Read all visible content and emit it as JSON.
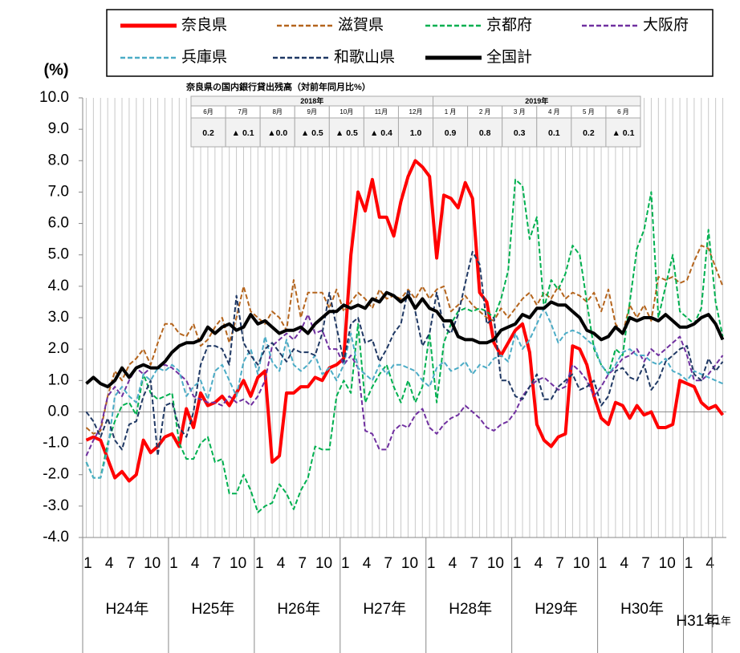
{
  "chart_data": {
    "type": "line",
    "y_axis_label": "(%)",
    "grid": "vertical",
    "categories": [
      "1",
      null,
      null,
      "4",
      null,
      null,
      "7",
      null,
      null,
      "10",
      null,
      null,
      "1",
      null,
      null,
      "4",
      null,
      null,
      "7",
      null,
      null,
      "10",
      null,
      null,
      "1",
      null,
      null,
      "4",
      null,
      null,
      "7",
      null,
      null,
      "10",
      null,
      null,
      "1",
      null,
      null,
      "4",
      null,
      null,
      "7",
      null,
      null,
      "10",
      null,
      null,
      "1",
      null,
      null,
      "4",
      null,
      null,
      "7",
      null,
      null,
      "10",
      null,
      null,
      "1",
      null,
      null,
      "4",
      null,
      null,
      "7",
      null,
      null,
      "10",
      null,
      null,
      "1",
      null,
      null,
      "4",
      null,
      null,
      "7",
      null,
      null,
      "10",
      null,
      null,
      "1",
      null,
      null,
      "4",
      null,
      null
    ],
    "year_labels": [
      "H24年",
      "H25年",
      "H26年",
      "H27年",
      "H28年",
      "H29年",
      "H30年",
      "H31年",
      "R1年"
    ],
    "ylim": [
      -4,
      10
    ],
    "yticks": [
      {
        "value": 10,
        "label": "10.0"
      },
      {
        "value": 9,
        "label": "9.0"
      },
      {
        "value": 8,
        "label": "8.0"
      },
      {
        "value": 7,
        "label": "7.0"
      },
      {
        "value": 6,
        "label": "6.0"
      },
      {
        "value": 5,
        "label": "5.0"
      },
      {
        "value": 4,
        "label": "4.0"
      },
      {
        "value": 3,
        "label": "3.0"
      },
      {
        "value": 2,
        "label": "2.0"
      },
      {
        "value": 1,
        "label": "1.0"
      },
      {
        "value": 0,
        "label": "0.0"
      },
      {
        "value": -1,
        "label": "-1.0"
      },
      {
        "value": -2,
        "label": "-2.0"
      },
      {
        "value": -3,
        "label": "-3.0"
      },
      {
        "value": -4,
        "label": "-4.0"
      }
    ],
    "series": [
      {
        "name": "奈良県",
        "color": "#ff0000",
        "style": "solid",
        "values": [
          -0.9,
          -0.8,
          -0.9,
          -1.5,
          -2.1,
          -1.9,
          -2.2,
          -2.0,
          -0.9,
          -1.3,
          -1.1,
          -0.8,
          -0.7,
          -1.1,
          0.1,
          -0.5,
          0.6,
          0.2,
          0.3,
          0.5,
          0.2,
          0.6,
          1.0,
          0.5,
          1.1,
          1.3,
          -1.6,
          -1.4,
          0.6,
          0.6,
          0.8,
          0.8,
          1.1,
          1.0,
          1.4,
          1.5,
          1.7,
          5.0,
          7.0,
          6.4,
          7.4,
          6.2,
          6.2,
          5.6,
          6.7,
          7.5,
          8.0,
          7.8,
          7.5,
          4.9,
          6.9,
          6.8,
          6.5,
          7.3,
          6.8,
          3.8,
          3.5,
          2.2,
          1.8,
          2.2,
          2.6,
          2.8,
          1.9,
          -0.4,
          -0.9,
          -1.1,
          -0.8,
          -0.7,
          2.1,
          2.0,
          1.5,
          0.5,
          -0.2,
          -0.4,
          0.3,
          0.2,
          -0.2,
          0.2,
          -0.1,
          0.0,
          -0.5,
          -0.5,
          -0.4,
          1.0,
          0.9,
          0.8,
          0.3,
          0.1,
          0.2,
          -0.1
        ]
      },
      {
        "name": "滋賀県",
        "color": "#b5651d",
        "style": "dashed",
        "values": [
          -0.5,
          -0.7,
          -0.6,
          0.5,
          1.3,
          1.0,
          1.5,
          1.7,
          2.0,
          1.5,
          2.2,
          2.8,
          2.8,
          2.5,
          2.4,
          2.8,
          2.1,
          2.3,
          2.7,
          3.0,
          2.2,
          3.0,
          4.0,
          3.2,
          3.0,
          2.8,
          3.2,
          3.0,
          2.6,
          4.2,
          3.0,
          3.8,
          3.8,
          3.8,
          3.3,
          3.9,
          3.2,
          3.5,
          3.8,
          3.6,
          3.3,
          3.9,
          3.6,
          3.7,
          3.6,
          3.9,
          3.6,
          4.0,
          3.6,
          3.9,
          4.0,
          3.2,
          3.4,
          3.7,
          3.4,
          3.2,
          3.0,
          2.9,
          3.3,
          3.0,
          3.3,
          3.6,
          3.8,
          3.4,
          3.8,
          3.6,
          4.0,
          3.6,
          3.8,
          3.7,
          3.5,
          3.8,
          3.2,
          3.9,
          2.8,
          2.5,
          3.4,
          3.0,
          3.4,
          2.9,
          4.3,
          4.2,
          4.3,
          4.1,
          4.2,
          4.8,
          5.3,
          5.2,
          4.6,
          4.0
        ]
      },
      {
        "name": "京都府",
        "color": "#00b050",
        "style": "dashed",
        "values": [
          -1.6,
          -2.1,
          -2.1,
          -1.0,
          -0.3,
          0.2,
          0.3,
          -0.1,
          1.2,
          0.6,
          0.4,
          0.5,
          0.6,
          -1.0,
          -1.5,
          -1.5,
          -1.0,
          -0.8,
          -1.6,
          -1.5,
          -2.6,
          -2.6,
          -2.0,
          -2.5,
          -3.2,
          -3.0,
          -2.9,
          -2.3,
          -2.6,
          -3.1,
          -2.5,
          -2.1,
          -1.1,
          -1.2,
          -1.2,
          0.5,
          1.0,
          0.6,
          2.8,
          0.3,
          0.8,
          1.2,
          1.5,
          0.8,
          0.3,
          1.0,
          0.3,
          0.8,
          2.5,
          0.3,
          2.2,
          2.8,
          3.2,
          3.3,
          3.2,
          3.3,
          3.2,
          3.0,
          3.6,
          4.5,
          7.4,
          7.2,
          5.5,
          6.2,
          3.3,
          4.2,
          3.9,
          4.4,
          5.3,
          5.0,
          3.5,
          2.0,
          1.5,
          1.2,
          2.0,
          1.8,
          3.5,
          5.2,
          5.8,
          7.0,
          3.0,
          4.0,
          5.0,
          3.2,
          3.0,
          2.8,
          3.3,
          5.8,
          3.5,
          2.4
        ]
      },
      {
        "name": "大阪府",
        "color": "#7030a0",
        "style": "dashed",
        "values": [
          -1.4,
          -0.9,
          -0.5,
          0.5,
          0.8,
          0.5,
          1.0,
          1.4,
          1.2,
          1.4,
          1.4,
          1.5,
          1.4,
          1.2,
          1.0,
          0.5,
          0.4,
          0.3,
          0.3,
          0.2,
          0.5,
          0.3,
          0.4,
          0.2,
          0.5,
          1.0,
          2.1,
          2.3,
          2.5,
          2.3,
          2.6,
          3.1,
          2.5,
          2.6,
          2.0,
          2.0,
          1.5,
          1.8,
          1.4,
          -0.6,
          -0.7,
          -1.2,
          -1.2,
          -0.6,
          -0.4,
          -0.5,
          -0.1,
          0.1,
          -0.5,
          -0.7,
          -0.4,
          -0.2,
          -0.1,
          0.2,
          0.0,
          -0.2,
          -0.5,
          -0.6,
          -0.4,
          -0.3,
          0.0,
          0.5,
          0.8,
          1.0,
          1.1,
          0.9,
          0.7,
          0.8,
          1.5,
          1.3,
          1.0,
          0.5,
          0.8,
          1.2,
          1.4,
          1.7,
          1.8,
          2.0,
          1.6,
          2.0,
          1.8,
          2.0,
          2.2,
          2.4,
          1.8,
          1.0,
          1.0,
          1.2,
          1.5,
          1.8
        ]
      },
      {
        "name": "兵庫県",
        "color": "#4bacc6",
        "style": "dashed",
        "values": [
          -1.6,
          -2.1,
          -2.1,
          -1.2,
          0.5,
          0.8,
          0.5,
          0.3,
          1.2,
          1.0,
          1.4,
          1.3,
          1.5,
          1.3,
          0.5,
          0.8,
          1.0,
          0.4,
          1.3,
          1.5,
          1.0,
          0.5,
          1.6,
          2.0,
          1.2,
          2.4,
          1.6,
          1.3,
          2.3,
          1.5,
          1.3,
          1.5,
          1.8,
          1.2,
          1.4,
          1.0,
          1.5,
          2.5,
          1.4,
          1.2,
          1.0,
          1.5,
          1.2,
          1.5,
          1.5,
          1.4,
          1.3,
          1.0,
          0.8,
          1.4,
          1.6,
          1.3,
          1.4,
          1.6,
          1.2,
          1.5,
          1.4,
          1.7,
          1.8,
          1.6,
          2.5,
          2.0,
          2.3,
          2.8,
          3.3,
          2.8,
          2.2,
          2.5,
          2.6,
          2.5,
          2.3,
          2.1,
          1.5,
          1.2,
          1.5,
          1.9,
          2.0,
          1.8,
          1.8,
          1.6,
          1.5,
          1.7,
          1.3,
          1.2,
          1.0,
          1.3,
          1.2,
          1.1,
          1.0,
          0.9
        ]
      },
      {
        "name": "和歌山県",
        "color": "#1f3864",
        "style": "dashed",
        "values": [
          0.0,
          -0.3,
          -0.8,
          -0.2,
          -0.9,
          -1.2,
          -0.4,
          -0.3,
          0.5,
          1.0,
          -1.4,
          0.2,
          0.3,
          -0.5,
          -0.8,
          0.0,
          1.5,
          2.1,
          2.1,
          2.0,
          1.5,
          3.7,
          2.2,
          1.8,
          1.5,
          2.0,
          2.2,
          1.9,
          1.6,
          2.0,
          1.9,
          1.9,
          1.8,
          2.5,
          3.8,
          2.7,
          1.6,
          2.8,
          3.0,
          2.2,
          2.3,
          1.6,
          2.0,
          2.5,
          2.8,
          3.9,
          3.2,
          2.1,
          2.5,
          3.8,
          2.7,
          2.5,
          3.1,
          4.1,
          5.1,
          4.7,
          2.8,
          3.0,
          1.0,
          1.0,
          0.5,
          0.4,
          0.8,
          1.2,
          0.4,
          0.4,
          0.8,
          1.0,
          1.2,
          0.7,
          0.8,
          1.0,
          0.2,
          0.5,
          1.3,
          1.4,
          1.1,
          1.0,
          1.5,
          0.7,
          1.0,
          1.6,
          1.8,
          2.0,
          2.1,
          1.2,
          1.0,
          1.7,
          1.3,
          1.6
        ]
      },
      {
        "name": "全国計",
        "color": "#000000",
        "style": "solid",
        "values": [
          0.9,
          1.1,
          0.9,
          0.8,
          1.0,
          1.4,
          1.1,
          1.4,
          1.5,
          1.4,
          1.4,
          1.6,
          1.9,
          2.1,
          2.2,
          2.2,
          2.3,
          2.7,
          2.5,
          2.7,
          2.8,
          2.6,
          2.7,
          3.1,
          2.8,
          2.9,
          2.7,
          2.5,
          2.6,
          2.6,
          2.7,
          2.5,
          2.8,
          3.0,
          3.2,
          3.2,
          3.4,
          3.3,
          3.4,
          3.3,
          3.6,
          3.5,
          3.8,
          3.7,
          3.5,
          3.7,
          3.3,
          3.6,
          3.3,
          3.2,
          2.9,
          2.9,
          2.4,
          2.3,
          2.3,
          2.2,
          2.2,
          2.3,
          2.6,
          2.7,
          2.8,
          3.1,
          3.0,
          3.3,
          3.3,
          3.5,
          3.4,
          3.4,
          3.2,
          3.0,
          2.6,
          2.5,
          2.3,
          2.4,
          2.7,
          2.5,
          3.0,
          2.9,
          3.0,
          3.0,
          2.9,
          3.1,
          2.9,
          2.7,
          2.7,
          2.8,
          3.0,
          3.1,
          2.8,
          2.3
        ]
      }
    ]
  },
  "table": {
    "title": "奈良県の国内銀行貸出残高（対前年同月比%）",
    "years": [
      {
        "label": "2018年",
        "months": [
          "6月",
          "7月",
          "8月",
          "9月",
          "10月",
          "11月",
          "12月"
        ],
        "values": [
          "0.2",
          "▲ 0.1",
          "▲0.0",
          "▲ 0.5",
          "▲ 0.5",
          "▲ 0.4",
          "1.0"
        ]
      },
      {
        "label": "2019年",
        "months": [
          "1 月",
          "2 月",
          "3 月",
          "4 月",
          "5 月",
          "6 月"
        ],
        "values": [
          "0.9",
          "0.8",
          "0.3",
          "0.1",
          "0.2",
          "▲ 0.1"
        ]
      }
    ]
  }
}
